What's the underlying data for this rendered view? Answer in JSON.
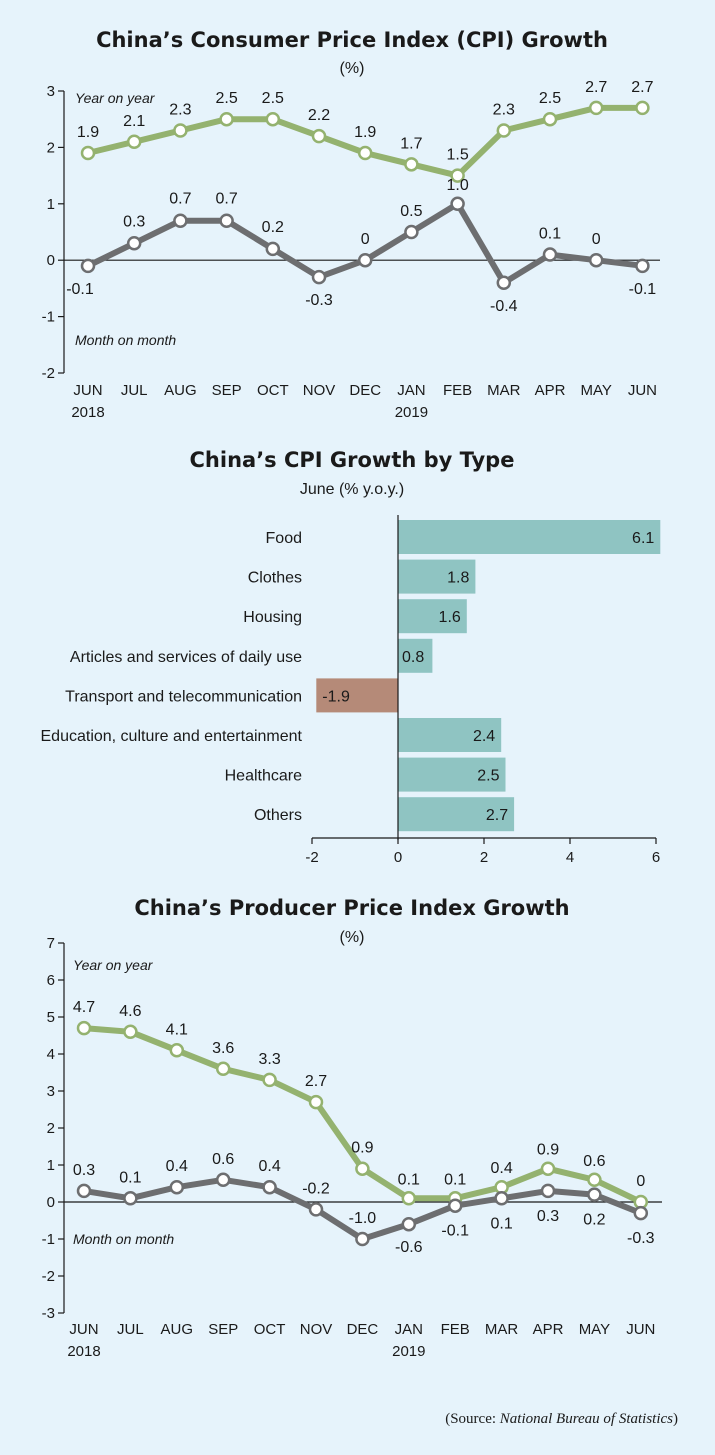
{
  "colors": {
    "yoy": "#94b26f",
    "mom": "#6d6e70",
    "bar_positive": "#8fc4c2",
    "bar_negative": "#b58a78",
    "marker_fill": "#ffffff"
  },
  "chart_data": [
    {
      "type": "line",
      "title": "China’s Consumer Price Index (CPI) Growth",
      "subtitle": "(%)",
      "categories": [
        "JUN",
        "JUL",
        "AUG",
        "SEP",
        "OCT",
        "NOV",
        "DEC",
        "JAN",
        "FEB",
        "MAR",
        "APR",
        "MAY",
        "JUN"
      ],
      "year_labels": [
        "2018",
        "",
        "",
        "",
        "",
        "",
        "",
        "2019",
        "",
        "",
        "",
        "",
        ""
      ],
      "ylim": [
        -2,
        3
      ],
      "yticks": [
        "-2",
        "-1",
        "0",
        "1",
        "2",
        "3"
      ],
      "series": [
        {
          "name": "Year on year",
          "values": [
            1.9,
            2.1,
            2.3,
            2.5,
            2.5,
            2.2,
            1.9,
            1.7,
            1.5,
            2.3,
            2.5,
            2.7,
            2.7
          ],
          "labels": [
            "1.9",
            "2.1",
            "2.3",
            "2.5",
            "2.5",
            "2.2",
            "1.9",
            "1.7",
            "1.5",
            "2.3",
            "2.5",
            "2.7",
            "2.7"
          ]
        },
        {
          "name": "Month on month",
          "values": [
            -0.1,
            0.3,
            0.7,
            0.7,
            0.2,
            -0.3,
            0,
            0.5,
            1.0,
            -0.4,
            0.1,
            0,
            -0.1
          ],
          "labels": [
            "-0.1",
            "0.3",
            "0.7",
            "0.7",
            "0.2",
            "-0.3",
            "0",
            "0.5",
            "1.0",
            "-0.4",
            "0.1",
            "0",
            "-0.1"
          ]
        }
      ]
    },
    {
      "type": "bar",
      "orientation": "horizontal",
      "title": "China’s CPI Growth by Type",
      "subtitle": "June (% y.o.y.)",
      "categories": [
        "Food",
        "Clothes",
        "Housing",
        "Articles and services of daily use",
        "Transport and telecommunication",
        "Education, culture and entertainment",
        "Healthcare",
        "Others"
      ],
      "values": [
        6.1,
        1.8,
        1.6,
        0.8,
        -1.9,
        2.4,
        2.5,
        2.7
      ],
      "labels": [
        "6.1",
        "1.8",
        "1.6",
        "0.8",
        "-1.9",
        "2.4",
        "2.5",
        "2.7"
      ],
      "xlim": [
        -2,
        6
      ],
      "xticks": [
        "-2",
        "0",
        "2",
        "4",
        "6"
      ]
    },
    {
      "type": "line",
      "title": "China’s Producer Price Index Growth",
      "subtitle": "(%)",
      "categories": [
        "JUN",
        "JUL",
        "AUG",
        "SEP",
        "OCT",
        "NOV",
        "DEC",
        "JAN",
        "FEB",
        "MAR",
        "APR",
        "MAY",
        "JUN"
      ],
      "year_labels": [
        "2018",
        "",
        "",
        "",
        "",
        "",
        "",
        "2019",
        "",
        "",
        "",
        "",
        ""
      ],
      "ylim": [
        -3,
        7
      ],
      "yticks": [
        "-3",
        "-2",
        "-1",
        "0",
        "1",
        "2",
        "3",
        "4",
        "5",
        "6",
        "7"
      ],
      "series": [
        {
          "name": "Year on year",
          "values": [
            4.7,
            4.6,
            4.1,
            3.6,
            3.3,
            2.7,
            0.9,
            0.1,
            0.1,
            0.4,
            0.9,
            0.6,
            0
          ],
          "labels": [
            "4.7",
            "4.6",
            "4.1",
            "3.6",
            "3.3",
            "2.7",
            "0.9",
            "0.1",
            "0.1",
            "0.4",
            "0.9",
            "0.6",
            "0"
          ]
        },
        {
          "name": "Month on month",
          "values": [
            0.3,
            0.1,
            0.4,
            0.6,
            0.4,
            -0.2,
            -1.0,
            -0.6,
            -0.1,
            0.1,
            0.3,
            0.2,
            -0.3
          ],
          "labels": [
            "0.3",
            "0.1",
            "0.4",
            "0.6",
            "0.4",
            "-0.2",
            "-1.0",
            "-0.6",
            "-0.1",
            "0.1",
            "0.3",
            "0.2",
            "-0.3"
          ]
        }
      ]
    }
  ],
  "source": {
    "prefix": "(Source: ",
    "name": "National Bureau of Statistics",
    "suffix": ")"
  }
}
